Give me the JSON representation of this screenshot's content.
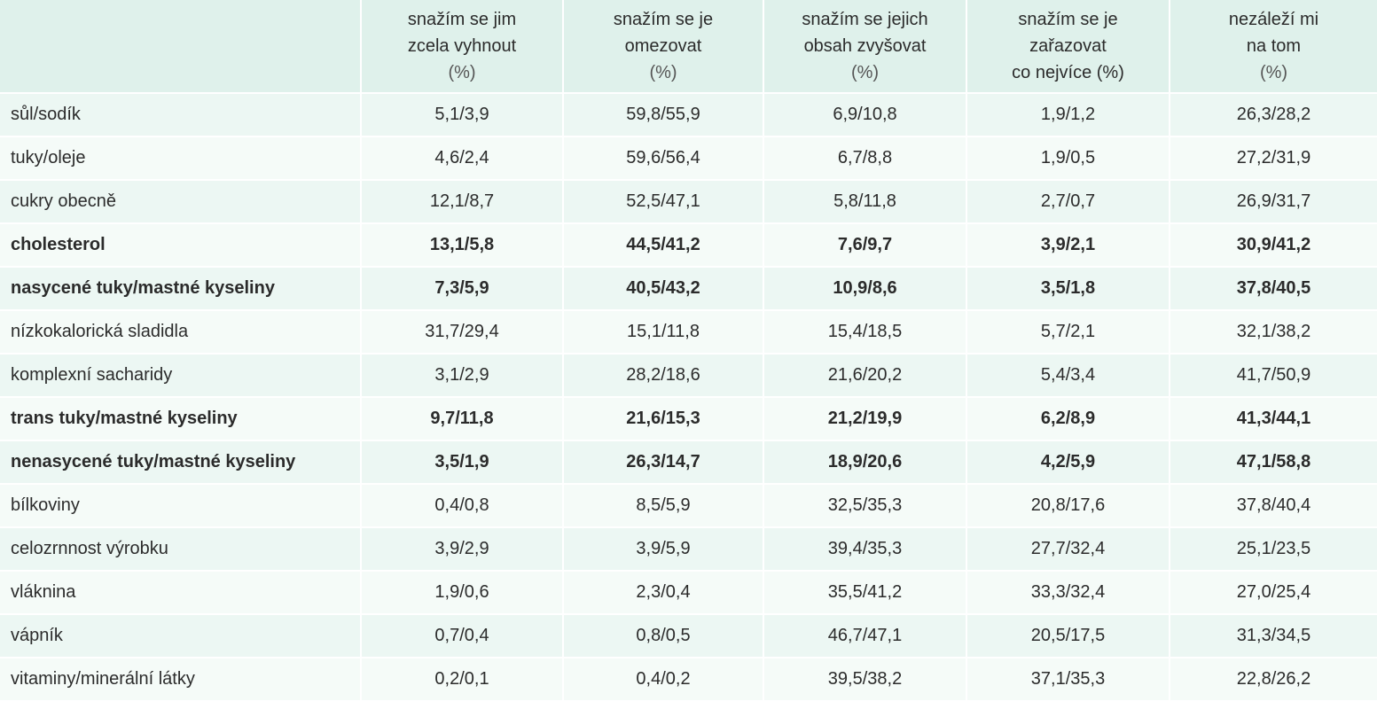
{
  "colors": {
    "header_bg": "#dff1eb",
    "row_odd_bg": "#ecf7f3",
    "row_even_bg": "#f5fbf8",
    "text": "#2b2b2b",
    "separator": "#ffffff"
  },
  "table": {
    "columns": [
      {
        "lines": [],
        "unit": ""
      },
      {
        "lines": [
          "snažím se jim",
          "zcela vyhnout"
        ],
        "unit": "(%)"
      },
      {
        "lines": [
          "snažím se je",
          "omezovat"
        ],
        "unit": "(%)"
      },
      {
        "lines": [
          "snažím se jejich",
          "obsah zvyšovat"
        ],
        "unit": "(%)"
      },
      {
        "lines": [
          "snažím se je",
          "zařazovat",
          "co nejvíce (%)"
        ],
        "unit": ""
      },
      {
        "lines": [
          "nezáleží mi",
          "na tom"
        ],
        "unit": "(%)"
      }
    ],
    "rows": [
      {
        "label": "sůl/sodík",
        "values": [
          "5,1/3,9",
          "59,8/55,9",
          "6,9/10,8",
          "1,9/1,2",
          "26,3/28,2"
        ],
        "bold": false
      },
      {
        "label": "tuky/oleje",
        "values": [
          "4,6/2,4",
          "59,6/56,4",
          "6,7/8,8",
          "1,9/0,5",
          "27,2/31,9"
        ],
        "bold": false
      },
      {
        "label": "cukry obecně",
        "values": [
          "12,1/8,7",
          "52,5/47,1",
          "5,8/11,8",
          "2,7/0,7",
          "26,9/31,7"
        ],
        "bold": false
      },
      {
        "label": "cholesterol",
        "values": [
          "13,1/5,8",
          "44,5/41,2",
          "7,6/9,7",
          "3,9/2,1",
          "30,9/41,2"
        ],
        "bold": true
      },
      {
        "label": "nasycené tuky/mastné kyseliny",
        "values": [
          "7,3/5,9",
          "40,5/43,2",
          "10,9/8,6",
          "3,5/1,8",
          "37,8/40,5"
        ],
        "bold": true
      },
      {
        "label": "nízkokalorická sladidla",
        "values": [
          "31,7/29,4",
          "15,1/11,8",
          "15,4/18,5",
          "5,7/2,1",
          "32,1/38,2"
        ],
        "bold": false
      },
      {
        "label": "komplexní sacharidy",
        "values": [
          "3,1/2,9",
          "28,2/18,6",
          "21,6/20,2",
          "5,4/3,4",
          "41,7/50,9"
        ],
        "bold": false
      },
      {
        "label": "trans tuky/mastné kyseliny",
        "values": [
          "9,7/11,8",
          "21,6/15,3",
          "21,2/19,9",
          "6,2/8,9",
          "41,3/44,1"
        ],
        "bold": true
      },
      {
        "label": "nenasycené tuky/mastné kyseliny",
        "values": [
          "3,5/1,9",
          "26,3/14,7",
          "18,9/20,6",
          "4,2/5,9",
          "47,1/58,8"
        ],
        "bold": true
      },
      {
        "label": "bílkoviny",
        "values": [
          "0,4/0,8",
          "8,5/5,9",
          "32,5/35,3",
          "20,8/17,6",
          "37,8/40,4"
        ],
        "bold": false
      },
      {
        "label": "celozrnnost výrobku",
        "values": [
          "3,9/2,9",
          "3,9/5,9",
          "39,4/35,3",
          "27,7/32,4",
          "25,1/23,5"
        ],
        "bold": false
      },
      {
        "label": "vláknina",
        "values": [
          "1,9/0,6",
          "2,3/0,4",
          "35,5/41,2",
          "33,3/32,4",
          "27,0/25,4"
        ],
        "bold": false
      },
      {
        "label": "vápník",
        "values": [
          "0,7/0,4",
          "0,8/0,5",
          "46,7/47,1",
          "20,5/17,5",
          "31,3/34,5"
        ],
        "bold": false
      },
      {
        "label": "vitaminy/minerální látky",
        "values": [
          "0,2/0,1",
          "0,4/0,2",
          "39,5/38,2",
          "37,1/35,3",
          "22,8/26,2"
        ],
        "bold": false
      }
    ]
  }
}
